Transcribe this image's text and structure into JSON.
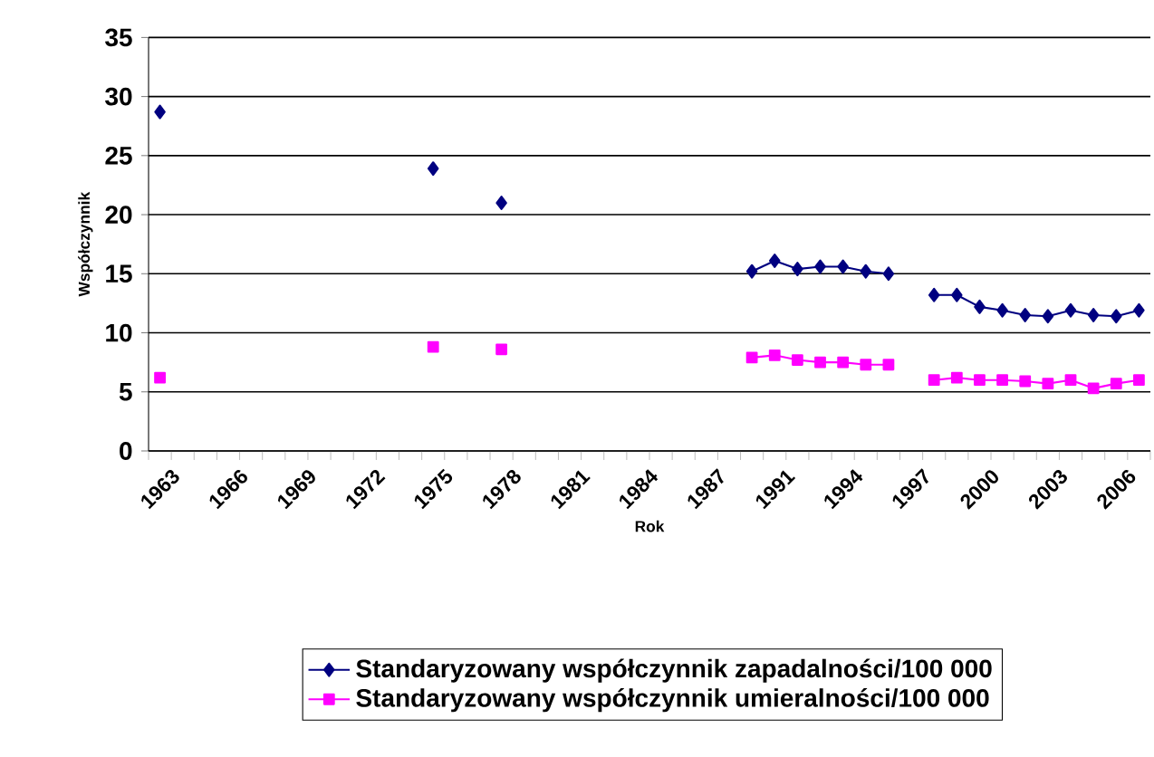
{
  "chart_data": {
    "type": "line",
    "xlabel": "Rok",
    "ylabel": "Współczynnik",
    "categories": [
      "1963",
      null,
      null,
      "1966",
      null,
      null,
      "1969",
      null,
      null,
      "1972",
      null,
      null,
      "1975",
      null,
      null,
      "1978",
      null,
      null,
      "1981",
      null,
      null,
      "1984",
      null,
      null,
      "1987",
      null,
      null,
      "1991",
      null,
      null,
      "1994",
      null,
      null,
      "1997",
      null,
      null,
      "2000",
      null,
      null,
      "2003",
      null,
      null,
      "2006",
      null
    ],
    "series": [
      {
        "name": "Standaryzowany współczynnik zapadalności/100 000",
        "color": "#000080",
        "marker": "diamond",
        "values": [
          28.7,
          null,
          null,
          null,
          null,
          null,
          null,
          null,
          null,
          null,
          null,
          null,
          23.9,
          null,
          null,
          21.0,
          null,
          null,
          null,
          null,
          null,
          null,
          null,
          null,
          null,
          null,
          15.2,
          16.1,
          15.4,
          15.6,
          15.6,
          15.2,
          15.0,
          null,
          13.2,
          13.2,
          12.2,
          11.9,
          11.5,
          11.4,
          11.9,
          11.5,
          11.4,
          11.9
        ]
      },
      {
        "name": "Standaryzowany współczynnik umieralności/100 000",
        "color": "#ff00ff",
        "marker": "square",
        "values": [
          6.2,
          null,
          null,
          null,
          null,
          null,
          null,
          null,
          null,
          null,
          null,
          null,
          8.8,
          null,
          null,
          8.6,
          null,
          null,
          null,
          null,
          null,
          null,
          null,
          null,
          null,
          null,
          7.9,
          8.1,
          7.7,
          7.5,
          7.5,
          7.3,
          7.3,
          null,
          6.0,
          6.2,
          6.0,
          6.0,
          5.9,
          5.7,
          6.0,
          5.3,
          5.7,
          6.0
        ]
      }
    ],
    "ylim": [
      0,
      35
    ],
    "yticks": [
      0,
      5,
      10,
      15,
      20,
      25,
      30,
      35
    ],
    "grid": "y",
    "legend": "bottom"
  }
}
